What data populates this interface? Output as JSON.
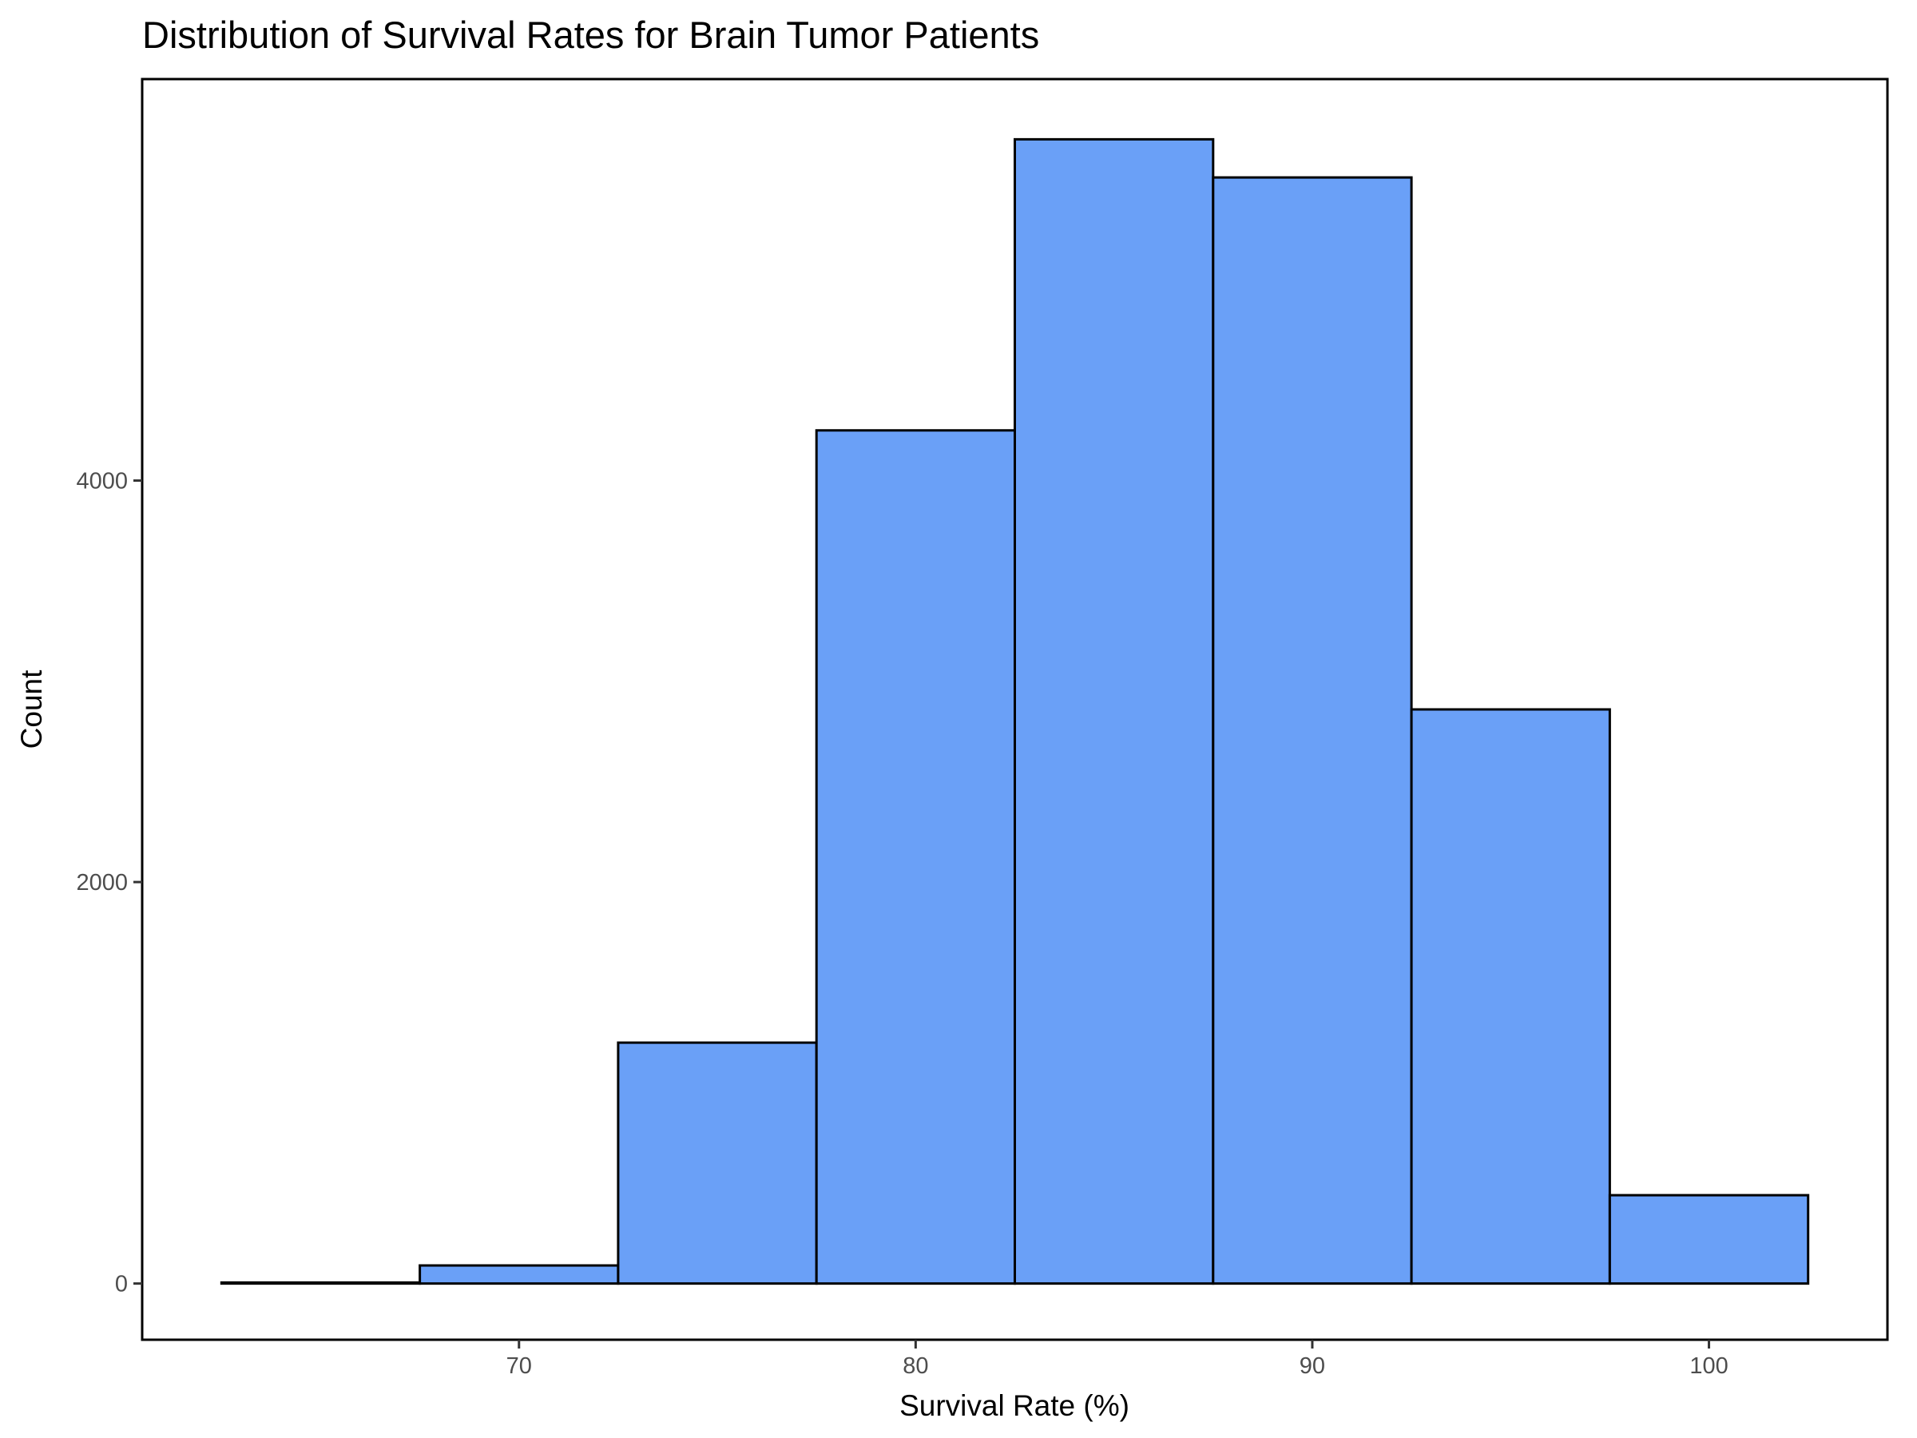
{
  "chart_data": {
    "type": "bar",
    "subtype": "histogram",
    "title": "Distribution of Survival Rates for Brain Tumor Patients",
    "xlabel": "Survival Rate (%)",
    "ylabel": "Count",
    "bins": [
      {
        "x_start": 62.5,
        "x_end": 67.5,
        "count": 5
      },
      {
        "x_start": 67.5,
        "x_end": 72.5,
        "count": 90
      },
      {
        "x_start": 72.5,
        "x_end": 77.5,
        "count": 1200
      },
      {
        "x_start": 77.5,
        "x_end": 82.5,
        "count": 4250
      },
      {
        "x_start": 82.5,
        "x_end": 87.5,
        "count": 5700
      },
      {
        "x_start": 87.5,
        "x_end": 92.5,
        "count": 5510
      },
      {
        "x_start": 92.5,
        "x_end": 97.5,
        "count": 2860
      },
      {
        "x_start": 97.5,
        "x_end": 102.5,
        "count": 440
      }
    ],
    "xlim": [
      60.5,
      104.5
    ],
    "ylim": [
      -280,
      6000
    ],
    "x_ticks": [
      70,
      80,
      90,
      100
    ],
    "y_ticks": [
      0,
      2000,
      4000
    ],
    "grid": false,
    "legend": "none",
    "colors": {
      "fill": "#6aa0f7",
      "outline": "#000000"
    }
  }
}
